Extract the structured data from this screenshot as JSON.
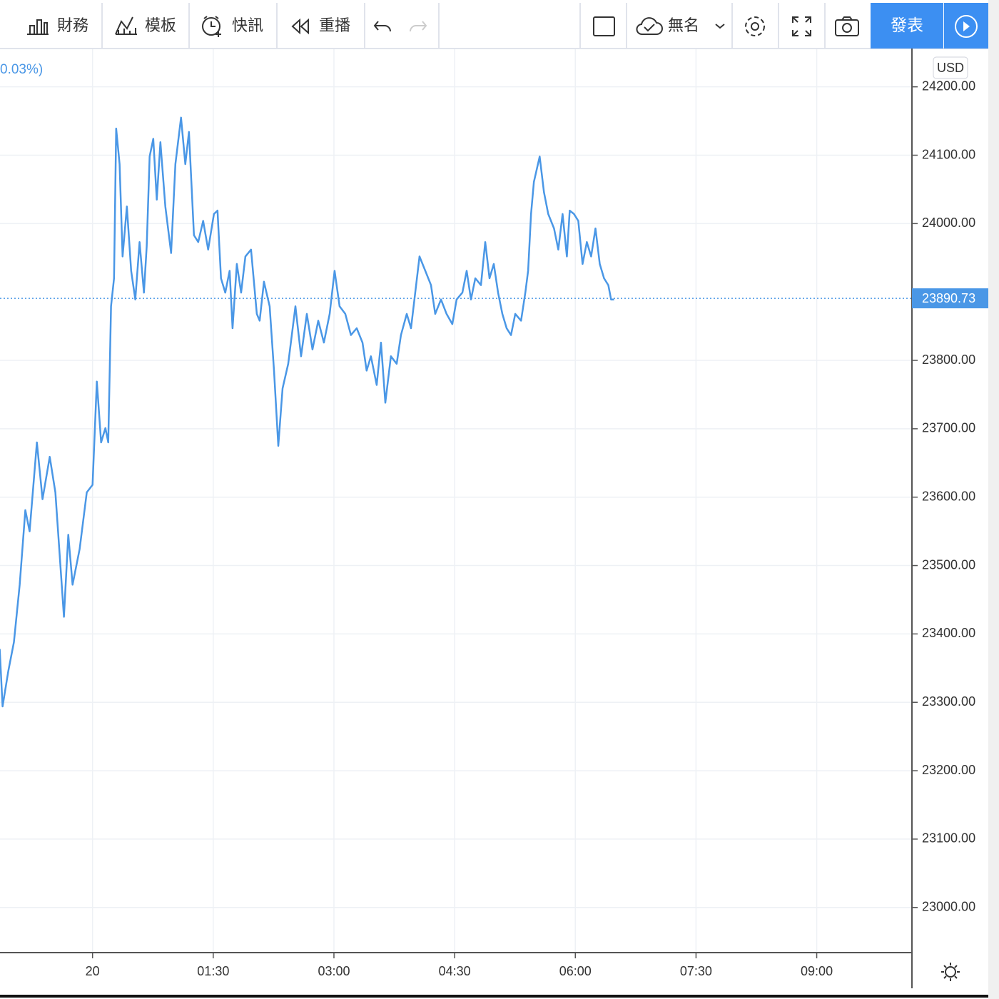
{
  "toolbar": {
    "items": [
      "財務",
      "模板",
      "快訊",
      "重播"
    ],
    "layout_name": "無名",
    "publish": "發表"
  },
  "legend_text": "0.03%)",
  "currency": "USD",
  "chart_data": {
    "type": "line",
    "series": [
      {
        "color": "#4a97e6",
        "x": [
          -69.2,
          -67.1,
          -62.8,
          -58.6,
          -54.3,
          -50.1,
          -46.9,
          -41.5,
          -37.3,
          -31.9,
          -27.7,
          -21.3,
          -18.1,
          -14.9,
          -9.6,
          -4.3,
          0,
          3.2,
          6.4,
          9.6,
          11.7,
          13.8,
          16.0,
          17.6,
          20.2,
          22.4,
          25.6,
          28.8,
          31.9,
          35.1,
          38.3,
          40.4,
          42.6,
          45.3,
          47.9,
          50.6,
          54.3,
          58.6,
          61.8,
          66.0,
          69.2,
          71.9,
          75.6,
          78.8,
          82.5,
          86.2,
          90.5,
          93.2,
          95.8,
          99.0,
          102.2,
          104.4,
          107.6,
          110.8,
          114.0,
          118.2,
          122.5,
          124.6,
          127.8,
          132.1,
          135.3,
          138.5,
          141.7,
          145.9,
          151.3,
          155.5,
          159.8,
          164.0,
          168.3,
          172.5,
          176.8,
          180.5,
          184.2,
          188.5,
          192.7,
          197.0,
          201.3,
          204.4,
          207.6,
          211.9,
          215.1,
          218.3,
          222.5,
          226.8,
          230.0,
          234.3,
          237.5,
          240.6,
          243.8,
          248.1,
          252.4,
          255.5,
          259.8,
          264.0,
          268.3,
          271.5,
          275.8,
          279.0,
          282.2,
          285.4,
          289.6,
          292.8,
          296.0,
          299.2,
          302.4,
          305.6,
          308.8,
          312.0,
          315.2,
          319.5,
          322.7,
          324.8,
          327.0,
          329.1,
          333.4,
          336.6,
          339.8,
          344.1,
          347.3,
          350.5,
          353.7,
          355.8,
          359.0,
          362.2,
          365.4,
          368.6,
          371.8,
          375.0,
          378.2,
          381.4,
          384.6,
          386.7,
          388.9
        ],
        "values": [
          23378,
          23294,
          23346,
          23388,
          23472,
          23581,
          23550,
          23680,
          23597,
          23659,
          23607,
          23425,
          23545,
          23472,
          23524,
          23607,
          23618,
          23769,
          23680,
          23701,
          23680,
          23879,
          23920,
          24139,
          24087,
          23952,
          24025,
          23931,
          23889,
          23973,
          23899,
          23967,
          24098,
          24124,
          24035,
          24119,
          24025,
          23957,
          24087,
          24155,
          24087,
          24134,
          23983,
          23973,
          24004,
          23962,
          24014,
          24019,
          23920,
          23899,
          23931,
          23847,
          23941,
          23899,
          23952,
          23962,
          23868,
          23858,
          23915,
          23879,
          23785,
          23675,
          23759,
          23795,
          23879,
          23806,
          23868,
          23816,
          23858,
          23826,
          23868,
          23931,
          23879,
          23868,
          23837,
          23847,
          23826,
          23785,
          23806,
          23764,
          23826,
          23738,
          23806,
          23795,
          23837,
          23868,
          23847,
          23899,
          23952,
          23931,
          23910,
          23868,
          23889,
          23868,
          23853,
          23889,
          23899,
          23931,
          23889,
          23920,
          23910,
          23973,
          23920,
          23941,
          23899,
          23868,
          23847,
          23837,
          23868,
          23858,
          23899,
          23931,
          24014,
          24061,
          24098,
          24046,
          24014,
          23993,
          23962,
          24014,
          23952,
          24019,
          24014,
          24004,
          23941,
          23973,
          23952,
          23993,
          23941,
          23920,
          23910,
          23889,
          23889
        ]
      }
    ],
    "last_price": 23890.73,
    "xlim": [
      -69,
      611
    ],
    "xticks": [
      {
        "value": 0,
        "label": "20"
      },
      {
        "value": 90,
        "label": "01:30"
      },
      {
        "value": 180,
        "label": "03:00"
      },
      {
        "value": 270,
        "label": "04:30"
      },
      {
        "value": 360,
        "label": "06:00"
      },
      {
        "value": 450,
        "label": "07:30"
      },
      {
        "value": 540,
        "label": "09:00"
      }
    ],
    "ylim": [
      22934,
      24256
    ],
    "yticks": [
      {
        "value": 24200,
        "label": "24200.00"
      },
      {
        "value": 24100,
        "label": "24100.00"
      },
      {
        "value": 24000,
        "label": "24000.00"
      },
      {
        "value": 23800,
        "label": "23800.00"
      },
      {
        "value": 23700,
        "label": "23700.00"
      },
      {
        "value": 23600,
        "label": "23600.00"
      },
      {
        "value": 23500,
        "label": "23500.00"
      },
      {
        "value": 23400,
        "label": "23400.00"
      },
      {
        "value": 23300,
        "label": "23300.00"
      },
      {
        "value": 23200,
        "label": "23200.00"
      },
      {
        "value": 23100,
        "label": "23100.00"
      },
      {
        "value": 23000,
        "label": "23000.00"
      }
    ],
    "grid": true
  }
}
